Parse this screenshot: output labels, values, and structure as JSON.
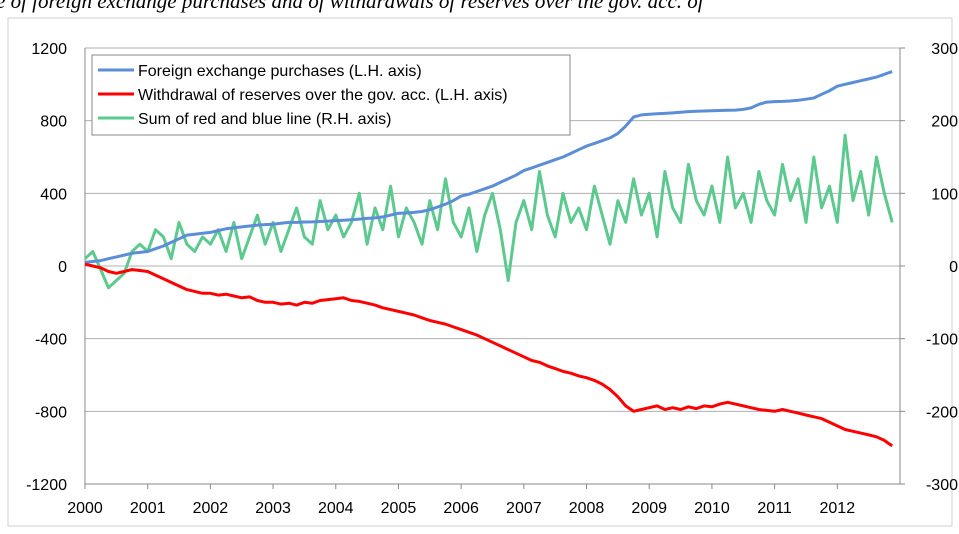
{
  "chart_data": {
    "type": "line",
    "title": "e of foreign exchange purchases and of withdrawals of reserves over the gov. acc. of",
    "x": [
      2000,
      2000.125,
      2000.25,
      2000.375,
      2000.5,
      2000.625,
      2000.75,
      2000.875,
      2001,
      2001.125,
      2001.25,
      2001.375,
      2001.5,
      2001.625,
      2001.75,
      2001.875,
      2002,
      2002.125,
      2002.25,
      2002.375,
      2002.5,
      2002.625,
      2002.75,
      2002.875,
      2003,
      2003.125,
      2003.25,
      2003.375,
      2003.5,
      2003.625,
      2003.75,
      2003.875,
      2004,
      2004.125,
      2004.25,
      2004.375,
      2004.5,
      2004.625,
      2004.75,
      2004.875,
      2005,
      2005.125,
      2005.25,
      2005.375,
      2005.5,
      2005.625,
      2005.75,
      2005.875,
      2006,
      2006.125,
      2006.25,
      2006.375,
      2006.5,
      2006.625,
      2006.75,
      2006.875,
      2007,
      2007.125,
      2007.25,
      2007.375,
      2007.5,
      2007.625,
      2007.75,
      2007.875,
      2008,
      2008.125,
      2008.25,
      2008.375,
      2008.5,
      2008.625,
      2008.75,
      2008.875,
      2009,
      2009.125,
      2009.25,
      2009.375,
      2009.5,
      2009.625,
      2009.75,
      2009.875,
      2010,
      2010.125,
      2010.25,
      2010.375,
      2010.5,
      2010.625,
      2010.75,
      2010.875,
      2011,
      2011.125,
      2011.25,
      2011.375,
      2011.5,
      2011.625,
      2011.75,
      2011.875,
      2012,
      2012.125,
      2012.25,
      2012.375,
      2012.5,
      2012.625,
      2012.75,
      2012.875
    ],
    "series": [
      {
        "name": "Foreign exchange purchases (L.H. axis)",
        "color": "#5b8ed6",
        "values": [
          20,
          25,
          30,
          40,
          50,
          60,
          70,
          75,
          80,
          95,
          110,
          130,
          150,
          170,
          175,
          180,
          185,
          195,
          205,
          210,
          215,
          220,
          225,
          228,
          230,
          235,
          240,
          240,
          242,
          243,
          245,
          247,
          250,
          252,
          255,
          258,
          262,
          265,
          270,
          280,
          290,
          292,
          295,
          300,
          310,
          325,
          340,
          360,
          385,
          395,
          410,
          425,
          440,
          460,
          480,
          500,
          525,
          540,
          555,
          570,
          585,
          600,
          620,
          640,
          660,
          675,
          690,
          705,
          730,
          770,
          820,
          832,
          835,
          838,
          840,
          843,
          846,
          850,
          852,
          853,
          855,
          856,
          857,
          858,
          862,
          870,
          890,
          902,
          905,
          906,
          908,
          912,
          918,
          925,
          945,
          965,
          990,
          1000,
          1010,
          1020,
          1030,
          1040,
          1055,
          1070
        ]
      },
      {
        "name": "Withdrawal of reserves over the gov. acc. (L.H. axis)",
        "color": "#ff0000",
        "values": [
          10,
          0,
          -10,
          -30,
          -40,
          -30,
          -20,
          -25,
          -30,
          -50,
          -70,
          -90,
          -110,
          -130,
          -140,
          -150,
          -150,
          -160,
          -155,
          -165,
          -175,
          -170,
          -190,
          -200,
          -200,
          -210,
          -205,
          -215,
          -200,
          -205,
          -190,
          -185,
          -180,
          -175,
          -190,
          -195,
          -205,
          -215,
          -230,
          -240,
          -250,
          -260,
          -270,
          -285,
          -300,
          -310,
          -320,
          -335,
          -350,
          -365,
          -380,
          -400,
          -420,
          -440,
          -460,
          -480,
          -500,
          -520,
          -530,
          -550,
          -565,
          -580,
          -590,
          -605,
          -615,
          -630,
          -650,
          -680,
          -720,
          -770,
          -800,
          -790,
          -780,
          -770,
          -790,
          -780,
          -790,
          -775,
          -785,
          -770,
          -775,
          -760,
          -750,
          -760,
          -770,
          -780,
          -790,
          -795,
          -800,
          -790,
          -800,
          -810,
          -820,
          -830,
          -840,
          -860,
          -880,
          -900,
          -910,
          -920,
          -930,
          -940,
          -960,
          -990
        ]
      },
      {
        "name": "Sum of red and blue line (R.H. axis)",
        "color": "#5cc98e",
        "axis": "y2",
        "values": [
          10,
          20,
          -5,
          -30,
          -20,
          -10,
          20,
          30,
          20,
          50,
          40,
          10,
          60,
          30,
          20,
          40,
          30,
          50,
          20,
          60,
          10,
          40,
          70,
          30,
          60,
          20,
          50,
          80,
          40,
          30,
          90,
          50,
          70,
          40,
          60,
          100,
          30,
          80,
          50,
          110,
          40,
          80,
          60,
          30,
          90,
          50,
          120,
          60,
          40,
          80,
          20,
          70,
          100,
          50,
          -20,
          60,
          90,
          50,
          130,
          70,
          40,
          100,
          60,
          80,
          50,
          110,
          70,
          30,
          90,
          60,
          120,
          70,
          100,
          40,
          130,
          80,
          60,
          140,
          90,
          70,
          110,
          60,
          150,
          80,
          100,
          60,
          130,
          90,
          70,
          140,
          90,
          120,
          60,
          150,
          80,
          110,
          60,
          180,
          90,
          130,
          70,
          150,
          100,
          60
        ]
      }
    ],
    "xlim": [
      2000,
      2013
    ],
    "xticks": [
      2000,
      2001,
      2002,
      2003,
      2004,
      2005,
      2006,
      2007,
      2008,
      2009,
      2010,
      2011,
      2012
    ],
    "ylim": [
      -1200,
      1200
    ],
    "yticks": [
      -1200,
      -800,
      -400,
      0,
      400,
      800,
      1200
    ],
    "y2lim": [
      -300,
      300
    ],
    "y2ticks": [
      -300,
      -200,
      -100,
      0,
      100,
      200,
      300
    ],
    "grid": true,
    "legend": "upper-left"
  }
}
